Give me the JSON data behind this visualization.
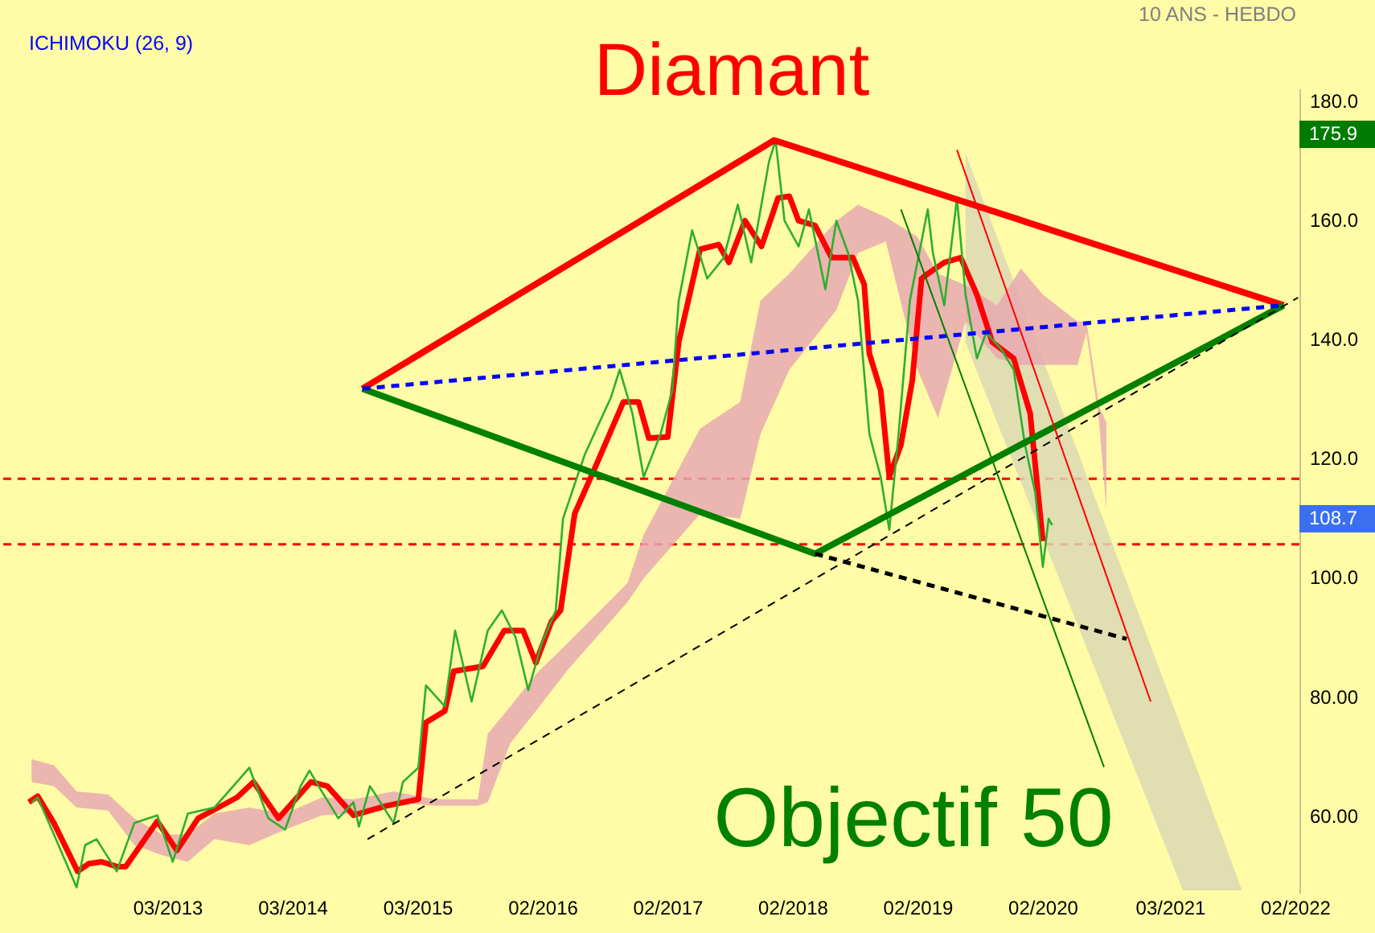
{
  "chart_data": {
    "type": "line",
    "title": "Diamant",
    "annotations": [
      "ICHIMOKU (26, 9)",
      "10 ANS - HEBDO",
      "Objectif 50",
      "175.9",
      "108.7"
    ],
    "xlim": [
      "2011-11-03",
      "2022-03-13"
    ],
    "xticks": [
      {
        "value": "2013-03-04",
        "label": "03/2013"
      },
      {
        "value": "2014-03-03",
        "label": "03/2014"
      },
      {
        "value": "2015-03-02",
        "label": "03/2015"
      },
      {
        "value": "2016-02-29",
        "label": "02/2016"
      },
      {
        "value": "2017-02-27",
        "label": "02/2017"
      },
      {
        "value": "2018-02-26",
        "label": "02/2018"
      },
      {
        "value": "2019-02-25",
        "label": "02/2019"
      },
      {
        "value": "2020-02-24",
        "label": "02/2020"
      },
      {
        "value": "2021-03-01",
        "label": "03/2021"
      },
      {
        "value": "2022-02-28",
        "label": "02/2022"
      }
    ],
    "ylim": [
      47,
      182
    ],
    "yticks": [
      {
        "value": 180,
        "label": "180.0"
      },
      {
        "value": 160,
        "label": "160.0"
      },
      {
        "value": 140,
        "label": "140.0"
      },
      {
        "value": 120,
        "label": "120.0"
      },
      {
        "value": 100,
        "label": "100.0"
      },
      {
        "value": 80,
        "label": "80.00"
      },
      {
        "value": 60,
        "label": "60.00"
      }
    ],
    "ref_lines": [
      {
        "axis": "y",
        "value": 116.5,
        "color": "#ff0000",
        "line_style": "dashed"
      },
      {
        "axis": "y",
        "value": 105.5,
        "color": "#ff0000",
        "line_style": "dashed"
      }
    ],
    "series": [
      {
        "color": "#dcd8b4",
        "x": [
          "2019-07-15",
          "2021-04-08",
          "2021-09-27"
        ],
        "values": [
          null,
          null,
          null
        ],
        "upper": [
          171.1,
          74,
          47.4
        ],
        "lower": [
          139.3,
          47.4,
          47.4
        ]
      },
      {
        "color": "#e8a9b2",
        "x": [
          "2012-02-03",
          "2012-04-08",
          "2012-06-13",
          "2012-09-13",
          "2012-11-28",
          "2013-02-17",
          "2013-05-03",
          "2013-07-19",
          "2013-10-29",
          "2014-02-10",
          "2014-05-28",
          "2014-08-28",
          "2014-12-23",
          "2015-04-22",
          "2015-08-25",
          "2015-09-23",
          "2015-11-28",
          "2016-02-10",
          "2016-05-14",
          "2016-11-03",
          "2016-12-20",
          "2017-06-02",
          "2017-09-27",
          "2017-11-25",
          "2018-02-17",
          "2018-07-04",
          "2018-09-05",
          "2018-11-25",
          "2019-02-25",
          "2019-04-26",
          "2019-07-15",
          "2019-10-15",
          "2019-12-23",
          "2020-02-25",
          "2020-06-05",
          "2020-07-01",
          "2020-08-07",
          "2020-08-28"
        ],
        "values": [
          null,
          null,
          null,
          null,
          null,
          null,
          null,
          null,
          null,
          null,
          null,
          null,
          null,
          null,
          null,
          null,
          null,
          null,
          null,
          null,
          null,
          null,
          null,
          null,
          null,
          null,
          null,
          null,
          null,
          null,
          null,
          null,
          null,
          null,
          null,
          null,
          null,
          null
        ],
        "upper": [
          69.4,
          68.4,
          64,
          63.5,
          59.5,
          56.8,
          56.8,
          60.3,
          61.3,
          60.3,
          63,
          62.7,
          64,
          62.7,
          62.7,
          73.7,
          78.3,
          83.7,
          89,
          99,
          107.1,
          124.9,
          129.4,
          146.4,
          150.9,
          159.8,
          162.5,
          160.4,
          157.1,
          150.9,
          149,
          145.6,
          151.8,
          147.4,
          142.9,
          142.9,
          128.6,
          125.9
        ],
        "lower": [
          65.6,
          64.9,
          61.3,
          60.8,
          55,
          53.3,
          52.2,
          56,
          55,
          57.6,
          60,
          60.3,
          62.2,
          61.6,
          61.6,
          62.2,
          72.1,
          77.5,
          84.5,
          95.8,
          99.8,
          110.6,
          109.8,
          124,
          134.8,
          144.8,
          154.4,
          156.3,
          134.8,
          126.7,
          142.9,
          136.7,
          135.6,
          135.6,
          135.6,
          141,
          125.9,
          111.4
        ]
      },
      {
        "color": "#ff0000",
        "x": [
          "2012-01-26",
          "2012-02-21",
          "2012-04-08",
          "2012-06-16",
          "2012-07-19",
          "2012-08-25",
          "2012-10-08",
          "2012-11-03",
          "2013-02-03",
          "2013-04-01",
          "2013-06-02",
          "2013-09-23",
          "2013-11-10",
          "2014-01-22",
          "2014-04-26",
          "2014-06-13",
          "2014-08-28",
          "2014-12-02",
          "2015-03-05",
          "2015-03-27",
          "2015-05-21",
          "2015-06-16",
          "2015-09-09",
          "2015-11-10",
          "2016-01-04",
          "2016-02-10",
          "2016-03-27",
          "2016-04-22",
          "2016-06-02",
          "2016-08-03",
          "2016-10-22",
          "2016-12-05",
          "2017-01-04",
          "2017-02-28",
          "2017-04-01",
          "2017-06-02",
          "2017-07-26",
          "2017-08-25",
          "2017-10-11",
          "2017-11-28",
          "2018-01-15",
          "2018-02-17",
          "2018-03-16",
          "2018-05-03",
          "2018-06-20",
          "2018-08-21",
          "2018-09-23",
          "2018-10-08",
          "2018-11-10",
          "2018-12-05",
          "2019-01-08",
          "2019-02-10",
          "2019-03-09",
          "2019-03-27",
          "2019-05-14",
          "2019-07-01",
          "2019-08-17",
          "2019-10-01",
          "2019-12-02",
          "2020-01-19",
          "2020-02-25"
        ],
        "values": [
          62.2,
          63.2,
          58.7,
          50.6,
          51.9,
          52.2,
          51.4,
          51.4,
          59,
          54.1,
          59.5,
          63,
          65.6,
          59.5,
          65.6,
          64.9,
          60,
          61.6,
          62.7,
          75.6,
          77.5,
          84.2,
          85,
          91,
          91,
          85.6,
          92.6,
          94.4,
          110.6,
          118.7,
          129.4,
          129.4,
          123.3,
          123.5,
          139.4,
          155,
          155.8,
          152.8,
          159.8,
          155.5,
          163.6,
          163.9,
          159.8,
          159,
          153.6,
          153.6,
          149.1,
          137.5,
          131.3,
          116.8,
          122.2,
          133,
          150.1,
          150.9,
          152.8,
          153.6,
          147.4,
          139.4,
          136.7,
          127.5,
          106
        ]
      },
      {
        "color": "#2fae2f",
        "x": [
          "2012-02-03",
          "2012-02-21",
          "2012-04-08",
          "2012-06-13",
          "2012-07-08",
          "2012-08-10",
          "2012-10-08",
          "2012-11-28",
          "2013-02-03",
          "2013-03-20",
          "2013-05-03",
          "2013-07-19",
          "2013-09-23",
          "2013-10-29",
          "2013-12-23",
          "2014-02-10",
          "2014-03-27",
          "2014-04-22",
          "2014-05-28",
          "2014-07-15",
          "2014-08-28",
          "2014-09-13",
          "2014-10-15",
          "2014-12-23",
          "2015-01-19",
          "2015-03-05",
          "2015-03-27",
          "2015-05-21",
          "2015-06-20",
          "2015-08-07",
          "2015-09-23",
          "2015-11-03",
          "2015-12-13",
          "2016-01-19",
          "2016-02-28",
          "2016-04-08",
          "2016-04-29",
          "2016-07-01",
          "2016-09-16",
          "2016-10-11",
          "2016-11-17",
          "2016-12-20",
          "2017-02-07",
          "2017-03-13",
          "2017-04-01",
          "2017-05-10",
          "2017-06-23",
          "2017-08-10",
          "2017-09-20",
          "2017-10-29",
          "2017-12-20",
          "2018-01-08",
          "2018-02-03",
          "2018-03-16",
          "2018-04-15",
          "2018-06-02",
          "2018-07-04",
          "2018-08-07",
          "2018-09-05",
          "2018-10-08",
          "2018-11-10",
          "2018-12-05",
          "2019-01-01",
          "2019-02-03",
          "2019-03-27",
          "2019-04-11",
          "2019-05-14",
          "2019-06-20",
          "2019-07-15",
          "2019-08-17",
          "2019-09-13",
          "2019-10-26",
          "2019-12-02",
          "2020-01-04",
          "2020-02-03",
          "2020-02-25",
          "2020-03-13",
          "2020-03-23"
        ],
        "values": [
          62.2,
          63,
          56.8,
          47.9,
          55,
          56,
          50.6,
          58.7,
          60,
          52.2,
          60.3,
          61.3,
          65.6,
          68,
          59.5,
          57.6,
          64.9,
          67.5,
          64,
          59.5,
          62.2,
          58.1,
          64.9,
          58.7,
          65.6,
          68,
          81.8,
          78.3,
          91,
          79.1,
          91,
          94.4,
          89.9,
          81,
          89,
          94.4,
          109.8,
          120.5,
          130.2,
          134.8,
          127.5,
          116.8,
          124,
          131.3,
          146.4,
          158.2,
          150.1,
          153.6,
          162.5,
          152.8,
          169.8,
          173.3,
          159.8,
          155.5,
          161.7,
          148.3,
          159.8,
          154.4,
          146.4,
          124,
          116.8,
          107.9,
          124,
          146.4,
          161.7,
          154.4,
          145.6,
          163.6,
          147.4,
          136.7,
          141,
          138.3,
          134.8,
          122.2,
          114.1,
          101.7,
          109.8,
          108.7
        ]
      },
      {
        "color": "#ff0000",
        "x": [
          "2014-09-23",
          "2018-01-04",
          "2022-01-26"
        ],
        "values": [
          131.6,
          173.3,
          145.6
        ]
      },
      {
        "color": "#008000",
        "x": [
          "2014-09-23",
          "2018-05-03",
          "2022-01-26"
        ],
        "values": [
          131.6,
          103.9,
          145.6
        ]
      },
      {
        "color": "#0000ff",
        "line_style": "dashed",
        "x": [
          "2014-09-23",
          "2022-01-26"
        ],
        "values": [
          131.6,
          145.6
        ]
      },
      {
        "color": "#000000",
        "line_style": "dashed",
        "x": [
          "2014-10-08",
          "2022-03-09"
        ],
        "values": [
          56,
          146.9
        ]
      },
      {
        "color": "#000000",
        "line_style": "dashed",
        "x": [
          "2018-05-03",
          "2020-10-26"
        ],
        "values": [
          103.9,
          89.6
        ]
      },
      {
        "color": "#ff0000",
        "x": [
          "2019-06-20",
          "2021-01-04"
        ],
        "values": [
          171.7,
          79.1
        ]
      },
      {
        "color": "#008000",
        "x": [
          "2019-01-08",
          "2020-08-21"
        ],
        "values": [
          161.7,
          68.1
        ]
      }
    ]
  }
}
